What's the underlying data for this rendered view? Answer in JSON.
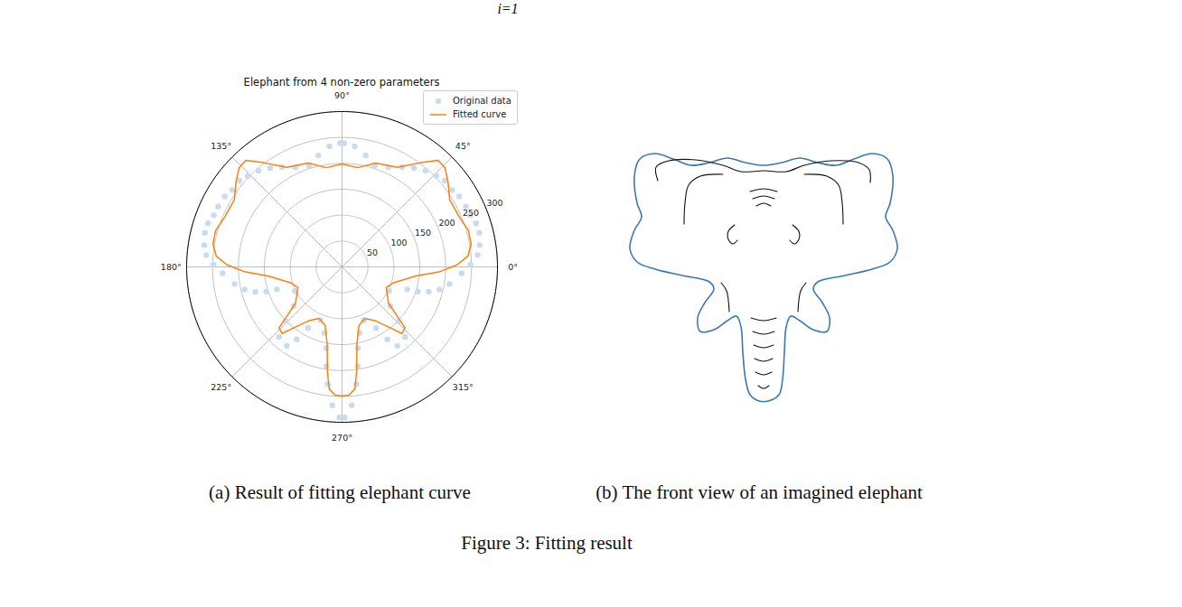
{
  "header_fragment": "i=1",
  "figure": {
    "caption": "Figure 3: Fitting result",
    "subfigures": [
      {
        "caption": "(a) Result of fitting elephant curve"
      },
      {
        "caption": "(b) The front view of an imagined elephant"
      }
    ]
  },
  "chart_data": {
    "type": "polar",
    "title": "Elephant from 4 non-zero parameters",
    "xlim": [
      0,
      360
    ],
    "xticks": [
      {
        "value": 0,
        "label": "0°"
      },
      {
        "value": 45,
        "label": "45°"
      },
      {
        "value": 90,
        "label": "90°"
      },
      {
        "value": 135,
        "label": "135°"
      },
      {
        "value": 180,
        "label": "180°"
      },
      {
        "value": 225,
        "label": "225°"
      },
      {
        "value": 270,
        "label": "270°"
      },
      {
        "value": 315,
        "label": "315°"
      }
    ],
    "ylim": [
      0,
      300
    ],
    "yticks": [
      50,
      100,
      150,
      200,
      250,
      300
    ],
    "grid": true,
    "legend": "upper right",
    "series": [
      {
        "name": "Original data",
        "type": "scatter",
        "color": "#c9dcee",
        "x": [
          1,
          5,
          9,
          14,
          18,
          22,
          26,
          31,
          35,
          40,
          44,
          49,
          54,
          59,
          65,
          72,
          78,
          84,
          89,
          91,
          96,
          102,
          108,
          115,
          121,
          126,
          131,
          136,
          140,
          145,
          149,
          154,
          158,
          162,
          166,
          171,
          175,
          179,
          183,
          189,
          193,
          196,
          198,
          199,
          207,
          219,
          224,
          228,
          235,
          238,
          241,
          248,
          255,
          259,
          261,
          263,
          266,
          269,
          271,
          274,
          277,
          279,
          281,
          285,
          292,
          299,
          302,
          305,
          312,
          316,
          321,
          333,
          341,
          342,
          344,
          347,
          351,
          357
        ],
        "values": [
          248,
          263,
          269,
          273,
          272,
          267,
          266,
          264,
          259,
          259,
          253,
          246,
          236,
          225,
          212,
          206,
          220,
          234,
          239,
          239,
          234,
          220,
          206,
          212,
          225,
          236,
          246,
          253,
          259,
          259,
          264,
          266,
          267,
          272,
          273,
          269,
          263,
          248,
          231,
          210,
          193,
          174,
          154,
          133,
          102,
          120,
          151,
          182,
          186,
          165,
          135,
          111,
          132,
          160,
          194,
          228,
          268,
          291,
          291,
          268,
          228,
          194,
          160,
          132,
          111,
          135,
          165,
          186,
          182,
          151,
          120,
          102,
          133,
          154,
          174,
          193,
          210,
          231
        ]
      },
      {
        "name": "Fitted curve",
        "type": "line",
        "color": "#ff7f0e",
        "x": [
          1,
          5,
          10,
          16,
          23,
          32,
          39,
          44,
          48,
          53,
          61,
          72,
          81,
          90,
          99,
          108,
          119,
          127,
          132,
          136,
          141,
          148,
          157,
          164,
          170,
          175,
          179,
          183,
          187,
          197,
          205,
          218,
          222,
          224,
          228,
          232,
          238,
          246,
          254,
          259,
          262,
          264,
          267,
          270,
          273,
          276,
          278,
          281,
          286,
          294,
          302,
          308,
          312,
          316,
          318,
          322,
          335,
          343,
          353,
          357
        ],
        "values": [
          222,
          244,
          253,
          254,
          246,
          245,
          263,
          276,
          277,
          252,
          220,
          211,
          194,
          199,
          194,
          211,
          220,
          252,
          277,
          276,
          263,
          245,
          246,
          254,
          253,
          244,
          222,
          187,
          144,
          104,
          94,
          114,
          145,
          169,
          173,
          148,
          123,
          109,
          118,
          151,
          203,
          237,
          248,
          249,
          248,
          237,
          203,
          151,
          118,
          109,
          123,
          148,
          173,
          169,
          145,
          114,
          94,
          104,
          144,
          187
        ]
      }
    ]
  }
}
